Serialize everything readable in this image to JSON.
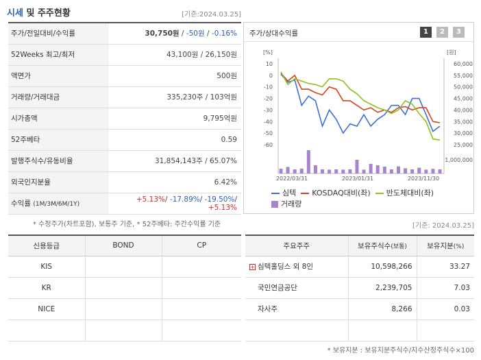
{
  "header": {
    "title_a": "시세",
    "title_b": " 및 주주현황",
    "date": "[기준:2024.03.25]"
  },
  "quote": {
    "rows": [
      {
        "label": "주가/전일대비/수익률",
        "type": "price",
        "price": "30,750원",
        "sep1": " / ",
        "change": "-50원",
        "sep2": " / ",
        "rate": "-0.16%"
      },
      {
        "label": "52Weeks 최고/최저",
        "value": "43,100원 / 26,150원"
      },
      {
        "label": "액면가",
        "value": "500원"
      },
      {
        "label": "거래량/거래대금",
        "value": "335,230주 / 103억원"
      },
      {
        "label": "시가총액",
        "value": "9,795억원"
      },
      {
        "label": "52주베타",
        "value": "0.59"
      },
      {
        "label": "발행주식수/유동비율",
        "value": "31,854,143주 / 65.07%"
      },
      {
        "label": "외국인지분율",
        "value": "6.42%"
      }
    ],
    "returns": {
      "label": "수익률",
      "label_sub": "(1M/3M/6M/1Y)",
      "r1": "+5.13%",
      "r2": "-17.89%",
      "r3": "-19.50%",
      "r4": "+5.13%",
      "sep": "/ "
    },
    "footnote": "* 수정주가(차트포함), 보통주 기준, * 52주베타: 주간수익률 기준"
  },
  "chart_panel": {
    "title": "주가/상대수익률",
    "tabs": [
      "1",
      "2",
      "3"
    ],
    "legend": {
      "s1": "심텍",
      "s2": "KOSDAQ대비(좌)",
      "s3": "반도체대비(좌)",
      "s4": "거래량"
    }
  },
  "chart_data": {
    "type": "line",
    "left_unit": "[%]",
    "right_unit": "[원]",
    "left_ticks": [
      "10",
      "0",
      "-10",
      "-20",
      "-30",
      "-40",
      "-50",
      "-60"
    ],
    "right_ticks": [
      "60,000",
      "55,000",
      "50,000",
      "45,000",
      "40,000",
      "35,000",
      "30,000",
      "25,000"
    ],
    "volume_tick": "1,000,000",
    "x_labels": [
      "2022/03/31",
      "2023/01/31",
      "2023/11/30"
    ],
    "colors": {
      "s1": "#3a6fd8",
      "s2": "#d8401c",
      "s3": "#8cc21b",
      "vol": "#a884d0"
    },
    "series": [
      {
        "name": "심텍",
        "axis": "right",
        "values": [
          55500,
          52000,
          53000,
          42000,
          46000,
          44000,
          33000,
          40000,
          36000,
          30000,
          34000,
          33000,
          38000,
          33000,
          36000,
          38000,
          42000,
          42000,
          38000,
          45000,
          45000,
          38000,
          30750,
          33000
        ]
      },
      {
        "name": "KOSDAQ대비(좌)",
        "axis": "left",
        "values": [
          2,
          -5,
          0,
          -12,
          -12,
          -15,
          -17,
          -10,
          -12,
          -22,
          -22,
          -26,
          -30,
          -28,
          -32,
          -30,
          -32,
          -28,
          -27,
          -30,
          -28,
          -28,
          -40,
          -41
        ]
      },
      {
        "name": "반도체대비(좌)",
        "axis": "left",
        "values": [
          3,
          -8,
          -3,
          -5,
          -7,
          -8,
          -10,
          -3,
          -3,
          -5,
          -12,
          -16,
          -22,
          -25,
          -28,
          -30,
          -33,
          -30,
          -22,
          -25,
          -33,
          -40,
          -55,
          -56
        ]
      },
      {
        "name": "거래량",
        "axis": "volume",
        "values": [
          350000,
          480000,
          300000,
          360000,
          1700000,
          600000,
          300000,
          280000,
          300000,
          280000,
          300000,
          1000000,
          280000,
          700000,
          600000,
          500000,
          300000,
          520000,
          380000,
          300000,
          420000,
          280000,
          340000,
          300000
        ]
      }
    ]
  },
  "ratings": {
    "date": "[기준: 2024.03.25]",
    "headers": [
      "신용등급",
      "BOND",
      "CP"
    ],
    "rows": [
      {
        "agency": "KIS",
        "bond": "",
        "cp": ""
      },
      {
        "agency": "KR",
        "bond": "",
        "cp": ""
      },
      {
        "agency": "NICE",
        "bond": "",
        "cp": ""
      },
      {
        "agency": "",
        "bond": "",
        "cp": ""
      }
    ]
  },
  "holders": {
    "headers": [
      "주요주주",
      "보유주식수",
      "(보통)",
      "보유지분",
      "(%)"
    ],
    "rows": [
      {
        "name": "심텍홀딩스 외 8인",
        "shares": "10,598,266",
        "pct": "33.27",
        "expand": "+"
      },
      {
        "name": "국민연금공단",
        "shares": "2,239,705",
        "pct": "7.03"
      },
      {
        "name": "자사주",
        "shares": "8,266",
        "pct": "0.03"
      },
      {
        "name": "",
        "shares": "",
        "pct": ""
      }
    ],
    "footnote": "* 보유지분 : 보유지분주식수/지수산정주식수×100"
  }
}
